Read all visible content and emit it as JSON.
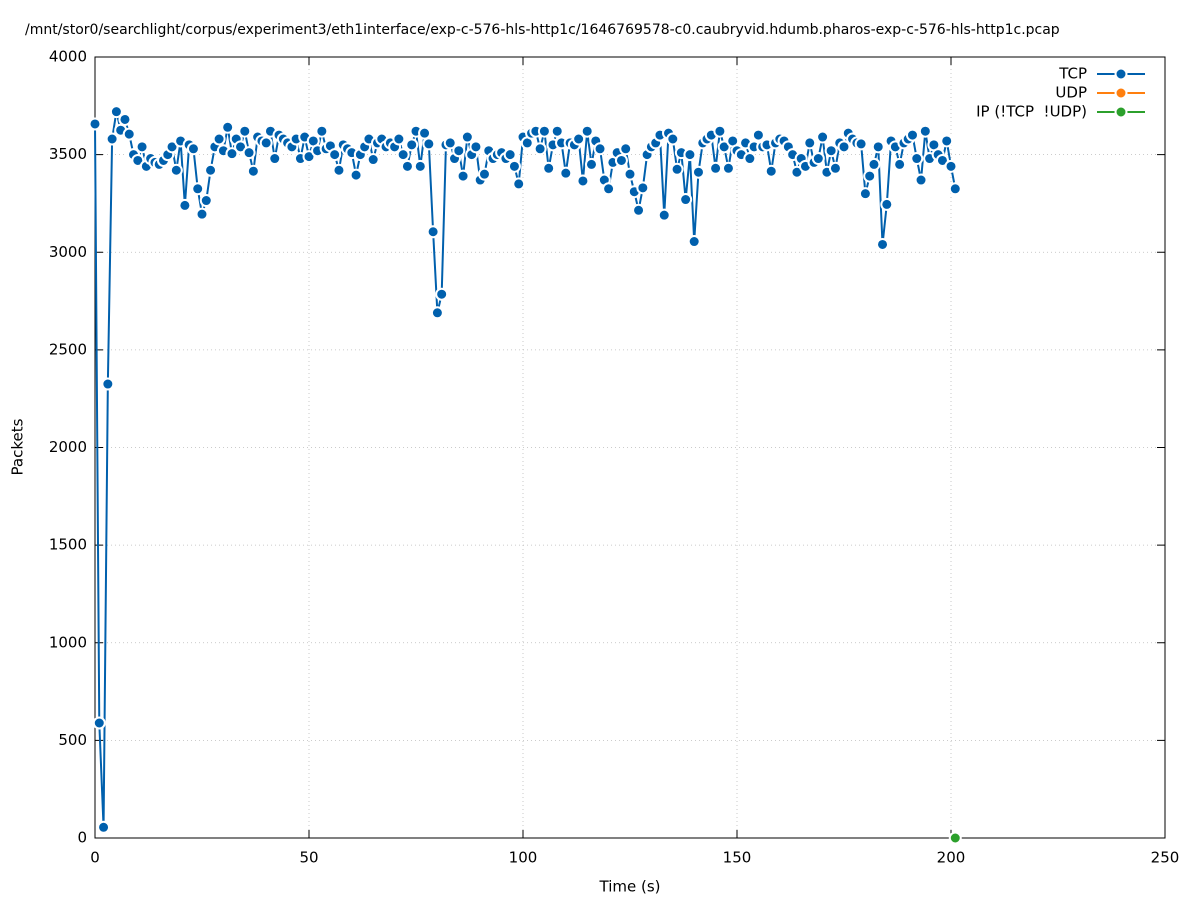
{
  "chart_data": {
    "type": "line",
    "title": "/mnt/stor0/searchlight/corpus/experiment3/eth1interface/exp-c-576-hls-http1c/1646769578-c0.caubryvid.hdumb.pharos-exp-c-576-hls-http1c.pcap",
    "x_label": "Time (s)",
    "y_label": "Packets",
    "xlim": [
      0,
      250
    ],
    "xticks": [
      0,
      50,
      100,
      150,
      200,
      250
    ],
    "ylim": [
      0,
      4000
    ],
    "yticks": [
      0,
      500,
      1000,
      1500,
      2000,
      2500,
      3000,
      3500,
      4000
    ],
    "grid": true,
    "legend": "top-right",
    "series": [
      {
        "name": "TCP",
        "color": "#0060ad",
        "x": [
          0,
          1,
          2,
          3,
          4,
          5,
          6,
          7,
          8,
          9,
          10,
          11,
          12,
          13,
          14,
          15,
          16,
          17,
          18,
          19,
          20,
          21,
          22,
          23,
          24,
          25,
          26,
          27,
          28,
          29,
          30,
          31,
          32,
          33,
          34,
          35,
          36,
          37,
          38,
          39,
          40,
          41,
          42,
          43,
          44,
          45,
          46,
          47,
          48,
          49,
          50,
          51,
          52,
          53,
          54,
          55,
          56,
          57,
          58,
          59,
          60,
          61,
          62,
          63,
          64,
          65,
          66,
          67,
          68,
          69,
          70,
          71,
          72,
          73,
          74,
          75,
          76,
          77,
          78,
          79,
          80,
          81,
          82,
          83,
          84,
          85,
          86,
          87,
          88,
          89,
          90,
          91,
          92,
          93,
          94,
          95,
          96,
          97,
          98,
          99,
          100,
          101,
          102,
          103,
          104,
          105,
          106,
          107,
          108,
          109,
          110,
          111,
          112,
          113,
          114,
          115,
          116,
          117,
          118,
          119,
          120,
          121,
          122,
          123,
          124,
          125,
          126,
          127,
          128,
          129,
          130,
          131,
          132,
          133,
          134,
          135,
          136,
          137,
          138,
          139,
          140,
          141,
          142,
          143,
          144,
          145,
          146,
          147,
          148,
          149,
          150,
          151,
          152,
          153,
          154,
          155,
          156,
          157,
          158,
          159,
          160,
          161,
          162,
          163,
          164,
          165,
          166,
          167,
          168,
          169,
          170,
          171,
          172,
          173,
          174,
          175,
          176,
          177,
          178,
          179,
          180,
          181,
          182,
          183,
          184,
          185,
          186,
          187,
          188,
          189,
          190,
          191,
          192,
          193,
          194,
          195,
          196,
          197,
          198,
          199,
          200,
          201
        ],
        "values": [
          3657,
          589,
          55,
          2325,
          3580,
          3720,
          3625,
          3680,
          3605,
          3500,
          3470,
          3540,
          3440,
          3480,
          3460,
          3450,
          3470,
          3500,
          3540,
          3420,
          3570,
          3240,
          3550,
          3530,
          3325,
          3195,
          3265,
          3420,
          3540,
          3580,
          3520,
          3640,
          3505,
          3580,
          3540,
          3620,
          3510,
          3415,
          3590,
          3570,
          3560,
          3620,
          3480,
          3600,
          3580,
          3560,
          3540,
          3580,
          3480,
          3590,
          3490,
          3570,
          3520,
          3620,
          3530,
          3545,
          3500,
          3420,
          3550,
          3530,
          3510,
          3395,
          3500,
          3540,
          3580,
          3475,
          3560,
          3580,
          3540,
          3560,
          3540,
          3580,
          3500,
          3440,
          3550,
          3620,
          3440,
          3610,
          3555,
          3105,
          2690,
          2785,
          3550,
          3560,
          3480,
          3520,
          3390,
          3590,
          3500,
          3540,
          3370,
          3400,
          3520,
          3480,
          3500,
          3510,
          3480,
          3500,
          3440,
          3350,
          3590,
          3560,
          3610,
          3620,
          3530,
          3620,
          3430,
          3550,
          3620,
          3560,
          3405,
          3560,
          3550,
          3580,
          3365,
          3620,
          3450,
          3570,
          3530,
          3370,
          3325,
          3460,
          3510,
          3470,
          3530,
          3400,
          3310,
          3215,
          3330,
          3500,
          3540,
          3560,
          3600,
          3190,
          3610,
          3580,
          3425,
          3510,
          3270,
          3500,
          3055,
          3410,
          3560,
          3580,
          3600,
          3430,
          3620,
          3540,
          3430,
          3570,
          3520,
          3500,
          3560,
          3480,
          3540,
          3600,
          3540,
          3550,
          3415,
          3560,
          3580,
          3570,
          3540,
          3500,
          3410,
          3480,
          3440,
          3560,
          3460,
          3480,
          3590,
          3410,
          3520,
          3430,
          3560,
          3540,
          3610,
          3580,
          3560,
          3555,
          3300,
          3390,
          3450,
          3540,
          3040,
          3245,
          3570,
          3540,
          3450,
          3560,
          3580,
          3600,
          3480,
          3370,
          3620,
          3480,
          3550,
          3500,
          3470,
          3570,
          3440,
          3325
        ]
      },
      {
        "name": "UDP",
        "color": "#ff7f0e",
        "x": [],
        "values": []
      },
      {
        "name": "IP (!TCP  !UDP)",
        "color": "#2ca02c",
        "x": [
          201
        ],
        "values": [
          0
        ]
      }
    ]
  }
}
